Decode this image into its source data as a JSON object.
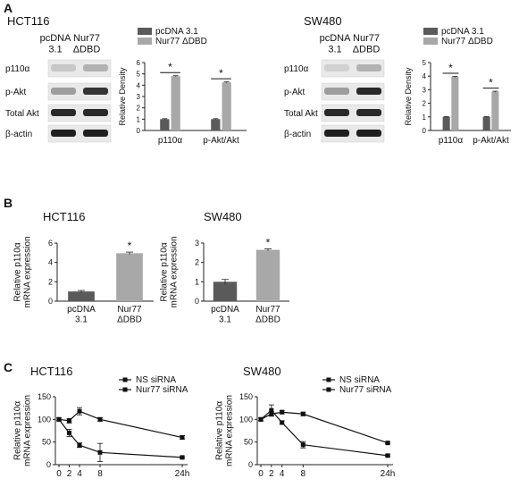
{
  "panels": {
    "A": {
      "letter": "A",
      "blots": [
        {
          "cell_line": "HCT116",
          "lanes": [
            "pcDNA\n3.1",
            "Nur77\nΔDBD"
          ],
          "rows": [
            "p110α",
            "p-Akt",
            "Total Akt",
            "β-actin"
          ]
        },
        {
          "cell_line": "SW480",
          "lanes": [
            "pcDNA\n3.1",
            "Nur77\nΔDBD"
          ],
          "rows": [
            "p110α",
            "p-Akt",
            "Total Akt",
            "β-actin"
          ]
        }
      ]
    },
    "B": {
      "letter": "B"
    },
    "C": {
      "letter": "C"
    }
  },
  "colors": {
    "dark_bar": "#5a5a5a",
    "light_bar": "#a8a8a8",
    "axis": "#222222"
  },
  "chart_data": [
    {
      "id": "A-HCT116",
      "type": "bar",
      "categories": [
        "p110α",
        "p-Akt/Akt"
      ],
      "series": [
        {
          "name": "pcDNA 3.1",
          "values": [
            1.0,
            1.0
          ],
          "errors": [
            0.04,
            0.04
          ]
        },
        {
          "name": "Nur77 ΔDBD",
          "values": [
            4.8,
            4.25
          ],
          "errors": [
            0.04,
            0.04
          ]
        }
      ],
      "ylabel": "Relative Density",
      "ylim": [
        0,
        6
      ],
      "yticks": [
        0,
        1,
        2,
        3,
        4,
        5,
        6
      ],
      "legend": "top",
      "significance": [
        "*",
        "*"
      ]
    },
    {
      "id": "A-SW480",
      "type": "bar",
      "categories": [
        "p110α",
        "p-Akt/Akt"
      ],
      "series": [
        {
          "name": "pcDNA 3.1",
          "values": [
            1.0,
            1.0
          ],
          "errors": [
            0.03,
            0.03
          ]
        },
        {
          "name": "Nur77 ΔDBD",
          "values": [
            3.95,
            2.85
          ],
          "errors": [
            0.03,
            0.04
          ]
        }
      ],
      "ylabel": "Relative Density",
      "ylim": [
        0,
        5
      ],
      "yticks": [
        0,
        1,
        2,
        3,
        4,
        5
      ],
      "legend": "top",
      "significance": [
        "*",
        "*"
      ]
    },
    {
      "id": "B-HCT116",
      "type": "bar",
      "title": "HCT116",
      "categories": [
        "pcDNA\n3.1",
        "Nur77\nΔDBD"
      ],
      "values": [
        1.0,
        4.95
      ],
      "errors": [
        0.1,
        0.12
      ],
      "ylabel": "Relative p110α\nmRNA expression",
      "ylim": [
        0,
        6
      ],
      "yticks": [
        0,
        2,
        4,
        6
      ],
      "significance": [
        "",
        "*"
      ]
    },
    {
      "id": "B-SW480",
      "type": "bar",
      "title": "SW480",
      "categories": [
        "pcDNA\n3.1",
        "Nur77\nΔDBD"
      ],
      "values": [
        1.0,
        2.65
      ],
      "errors": [
        0.12,
        0.05
      ],
      "ylabel": "Relative p110α\nmRNA expression",
      "ylim": [
        0,
        3
      ],
      "yticks": [
        0,
        1,
        2,
        3
      ],
      "significance": [
        "",
        "*"
      ]
    },
    {
      "id": "C-HCT116",
      "type": "line",
      "title": "HCT116",
      "x": [
        0,
        2,
        4,
        8,
        24
      ],
      "xticks": [
        "0",
        "2",
        "4",
        "8",
        "24h"
      ],
      "series": [
        {
          "name": "NS siRNA",
          "values": [
            100,
            97,
            118,
            100,
            60
          ],
          "errors": [
            3,
            5,
            8,
            4,
            4
          ]
        },
        {
          "name": "Nur77 siRNA",
          "values": [
            100,
            70,
            43,
            27,
            16
          ],
          "errors": [
            3,
            8,
            5,
            20,
            2
          ]
        }
      ],
      "ylabel": "Relative p110α\nmRNA expression",
      "ylim": [
        0,
        150
      ],
      "yticks": [
        0,
        50,
        100,
        150
      ],
      "legend": "top-right"
    },
    {
      "id": "C-SW480",
      "type": "line",
      "title": "SW480",
      "x": [
        0,
        2,
        4,
        8,
        24
      ],
      "xticks": [
        "0",
        "2",
        "4",
        "8",
        "24h"
      ],
      "series": [
        {
          "name": "NS siRNA",
          "values": [
            100,
            112,
            116,
            112,
            48
          ],
          "errors": [
            3,
            5,
            4,
            4,
            2
          ]
        },
        {
          "name": "Nur77 siRNA",
          "values": [
            100,
            120,
            93,
            44,
            20
          ],
          "errors": [
            3,
            12,
            4,
            7,
            2
          ]
        }
      ],
      "ylabel": "Relative p110α\nmRNA expression",
      "ylim": [
        0,
        150
      ],
      "yticks": [
        0,
        50,
        100,
        150
      ],
      "legend": "top-right"
    }
  ]
}
